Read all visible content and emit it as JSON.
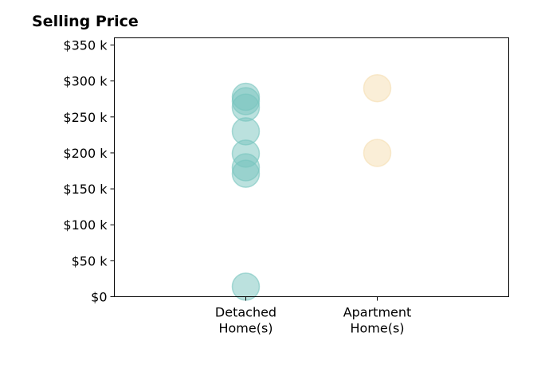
{
  "chart_data": {
    "type": "scatter",
    "title": "Selling Price",
    "xlabel": "",
    "ylabel": "",
    "categories": [
      "Detached\nHome(s)",
      "Apartment\nHome(s)"
    ],
    "xlim": [
      0,
      3
    ],
    "ylim": [
      0,
      360000
    ],
    "yticks": [
      {
        "value": 0,
        "label": "$0"
      },
      {
        "value": 50000,
        "label": "$50 k"
      },
      {
        "value": 100000,
        "label": "$100 k"
      },
      {
        "value": 150000,
        "label": "$150 k"
      },
      {
        "value": 200000,
        "label": "$200 k"
      },
      {
        "value": 250000,
        "label": "$250 k"
      },
      {
        "value": 300000,
        "label": "$300 k"
      },
      {
        "value": 350000,
        "label": "$350 k"
      }
    ],
    "grid": false,
    "series": [
      {
        "category": "Detached\nHome(s)",
        "x": 1,
        "color": "#77c4be",
        "values": [
          278000,
          272000,
          263000,
          230000,
          199000,
          180000,
          171000,
          14000
        ]
      },
      {
        "category": "Apartment\nHome(s)",
        "x": 2,
        "color": "#f5deb0",
        "values": [
          290000,
          200000
        ]
      }
    ]
  }
}
